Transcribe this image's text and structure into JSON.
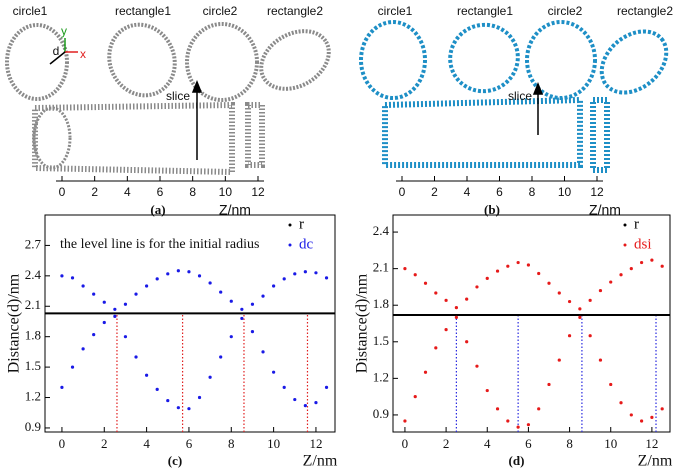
{
  "top_panels": [
    {
      "panel_label": "(a)",
      "slice_labels": [
        "circle1",
        "rectangle1",
        "circle2",
        "rectangle2"
      ],
      "slice": "slice",
      "xlabel": "Z/nm",
      "xticks": [
        0,
        2,
        4,
        6,
        8,
        10,
        12
      ],
      "axes_letters": [
        "y",
        "x",
        "d"
      ]
    },
    {
      "panel_label": "(b)",
      "slice_labels": [
        "circle1",
        "rectangle1",
        "circle2",
        "rectangle2"
      ],
      "slice": "slice",
      "xlabel": "Z/nm",
      "xticks": [
        0,
        2,
        4,
        6,
        8,
        10,
        12
      ]
    }
  ],
  "chart_data": [
    {
      "type": "scatter",
      "panel_label": "(c)",
      "xlabel": "Z/nm",
      "ylabel": "Distance(d)/nm",
      "annotation": "the level line is for the initial radius",
      "xlim": [
        -0.8,
        12.9
      ],
      "ylim": [
        0.86,
        3.0
      ],
      "xticks": [
        0,
        2,
        4,
        6,
        8,
        10,
        12
      ],
      "yticks": [
        0.9,
        1.2,
        1.5,
        1.8,
        2.1,
        2.4,
        2.7
      ],
      "legend": "upper right",
      "series": [
        {
          "name": "r",
          "color": "#000000",
          "values": [
            2.03
          ]
        },
        {
          "name": "dc",
          "color": "#1a1ae6",
          "x": [
            0,
            0.5,
            1,
            1.5,
            2,
            2.5,
            3,
            3.5,
            4,
            4.5,
            5,
            5.5,
            6,
            6.5,
            7,
            7.5,
            8,
            8.5,
            9,
            9.5,
            10,
            10.5,
            11,
            11.5,
            12,
            12.5,
            0,
            0.5,
            1,
            1.5,
            2,
            2.5,
            3,
            3.5,
            4,
            4.5,
            5,
            5.5,
            6,
            6.5,
            7,
            7.5,
            8,
            8.5,
            9,
            9.5,
            10,
            10.5,
            11,
            11.5,
            12,
            12.5
          ],
          "values": [
            2.4,
            2.38,
            2.3,
            2.22,
            2.14,
            2.07,
            2.12,
            2.22,
            2.3,
            2.37,
            2.42,
            2.45,
            2.44,
            2.4,
            2.33,
            2.24,
            2.15,
            2.07,
            2.12,
            2.2,
            2.3,
            2.37,
            2.42,
            2.44,
            2.43,
            2.38,
            1.3,
            1.5,
            1.68,
            1.82,
            1.94,
            2.0,
            1.8,
            1.6,
            1.42,
            1.28,
            1.17,
            1.1,
            1.09,
            1.2,
            1.4,
            1.6,
            1.8,
            1.98,
            1.85,
            1.65,
            1.45,
            1.3,
            1.18,
            1.12,
            1.15,
            1.3
          ]
        }
      ],
      "vlines": {
        "x": [
          2.6,
          5.7,
          8.6,
          11.6
        ],
        "color": "#e02020"
      }
    },
    {
      "type": "scatter",
      "panel_label": "(d)",
      "xlabel": "Z/nm",
      "ylabel": "Distance(d)/nm",
      "xlim": [
        -0.58,
        12.88
      ],
      "ylim": [
        0.76,
        2.54
      ],
      "xticks": [
        0,
        2,
        4,
        6,
        8,
        10,
        12
      ],
      "yticks": [
        0.9,
        1.2,
        1.5,
        1.8,
        2.1,
        2.4
      ],
      "legend": "upper right",
      "series": [
        {
          "name": "r",
          "color": "#000000",
          "values": [
            1.72
          ]
        },
        {
          "name": "dsi",
          "color": "#e61a1a",
          "x": [
            0,
            0.5,
            1,
            1.5,
            2,
            2.5,
            3,
            3.5,
            4,
            4.5,
            5,
            5.5,
            6,
            6.5,
            7,
            7.5,
            8,
            8.5,
            9,
            9.5,
            10,
            10.5,
            11,
            11.5,
            12,
            12.5,
            0,
            0.5,
            1,
            1.5,
            2,
            2.5,
            3,
            3.5,
            4,
            4.5,
            5,
            5.5,
            6,
            6.5,
            7,
            7.5,
            8,
            8.5,
            9,
            9.5,
            10,
            10.5,
            11,
            11.5,
            12,
            12.5
          ],
          "values": [
            2.1,
            2.05,
            1.98,
            1.9,
            1.84,
            1.78,
            1.85,
            1.95,
            2.02,
            2.08,
            2.12,
            2.15,
            2.13,
            2.06,
            1.98,
            1.9,
            1.83,
            1.77,
            1.84,
            1.92,
            1.99,
            2.05,
            2.1,
            2.15,
            2.17,
            2.12,
            0.85,
            1.05,
            1.25,
            1.45,
            1.6,
            1.7,
            1.5,
            1.3,
            1.1,
            0.95,
            0.85,
            0.8,
            0.82,
            0.95,
            1.15,
            1.35,
            1.55,
            1.7,
            1.55,
            1.35,
            1.15,
            1.0,
            0.9,
            0.85,
            0.88,
            0.95
          ]
        }
      ],
      "vlines": {
        "x": [
          2.5,
          5.5,
          8.6,
          12.2
        ],
        "color": "#2a2ae0"
      }
    }
  ]
}
